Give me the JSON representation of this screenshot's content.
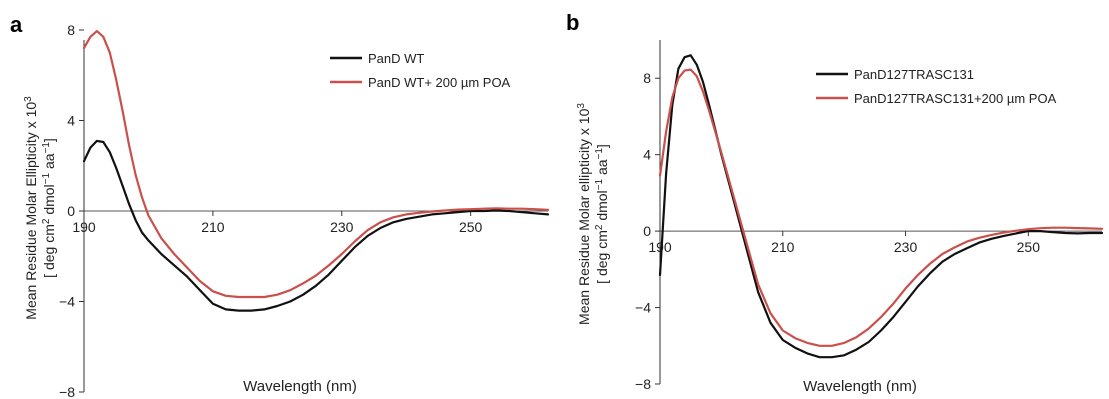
{
  "chart_data": [
    {
      "panel_label": "a",
      "type": "line",
      "xlabel": "Wavelength (nm)",
      "ylabel_line1": "Mean Residue Molar Ellipticity x 10",
      "ylabel_sup": "3",
      "ylabel_line2": "[ deg cm",
      "ylabel_line2_sup1": "2",
      "ylabel_line2_mid": " dmol",
      "ylabel_line2_sup2": "−1",
      "ylabel_line2_mid2": " aa",
      "ylabel_line2_sup3": "−1",
      "ylabel_line2_end": "]",
      "xlim": [
        190,
        262
      ],
      "ylim": [
        -8,
        8
      ],
      "xticks": [
        190,
        210,
        230,
        250
      ],
      "yticks": [
        8,
        4,
        0,
        -4,
        -8
      ],
      "xtick_labels": [
        "190",
        "210",
        "230",
        "250"
      ],
      "ytick_labels": [
        "8",
        "4",
        "0",
        "−4",
        "−8"
      ],
      "legend_position": "top-right",
      "series": [
        {
          "name": "PanD WT",
          "color": "#111111",
          "x": [
            190,
            191,
            192,
            193,
            194,
            195,
            196,
            197,
            198,
            199,
            200,
            202,
            204,
            206,
            208,
            210,
            212,
            214,
            216,
            218,
            220,
            222,
            224,
            226,
            228,
            230,
            232,
            234,
            236,
            238,
            240,
            242,
            244,
            246,
            248,
            250,
            252,
            254,
            256,
            258,
            260,
            262
          ],
          "y": [
            2.2,
            2.8,
            3.1,
            3.05,
            2.6,
            1.9,
            1.1,
            0.3,
            -0.4,
            -0.95,
            -1.3,
            -1.9,
            -2.4,
            -2.9,
            -3.5,
            -4.1,
            -4.35,
            -4.4,
            -4.4,
            -4.35,
            -4.2,
            -4.0,
            -3.7,
            -3.3,
            -2.8,
            -2.2,
            -1.6,
            -1.1,
            -0.75,
            -0.5,
            -0.35,
            -0.25,
            -0.15,
            -0.1,
            -0.05,
            0.0,
            0.0,
            0.02,
            0.0,
            -0.05,
            -0.1,
            -0.15
          ]
        },
        {
          "name": "PanD WT+ 200 µm POA",
          "color": "#c9504b",
          "x": [
            190,
            191,
            192,
            193,
            194,
            195,
            196,
            197,
            198,
            199,
            200,
            202,
            204,
            206,
            208,
            210,
            212,
            214,
            216,
            218,
            220,
            222,
            224,
            226,
            228,
            230,
            232,
            234,
            236,
            238,
            240,
            242,
            244,
            246,
            248,
            250,
            252,
            254,
            256,
            258,
            260,
            262
          ],
          "y": [
            7.2,
            7.7,
            7.95,
            7.7,
            7.0,
            5.8,
            4.4,
            2.9,
            1.6,
            0.6,
            -0.2,
            -1.2,
            -1.9,
            -2.5,
            -3.1,
            -3.55,
            -3.75,
            -3.8,
            -3.8,
            -3.8,
            -3.7,
            -3.5,
            -3.2,
            -2.85,
            -2.4,
            -1.9,
            -1.35,
            -0.85,
            -0.5,
            -0.28,
            -0.15,
            -0.08,
            -0.02,
            0.02,
            0.06,
            0.08,
            0.1,
            0.12,
            0.1,
            0.1,
            0.08,
            0.05
          ]
        }
      ]
    },
    {
      "panel_label": "b",
      "type": "line",
      "xlabel": "Wavelength (nm)",
      "ylabel_line1": "Mean Residue Molar ellipticity x 10",
      "ylabel_sup": "3",
      "ylabel_line2": "[ deg cm",
      "ylabel_line2_sup1": "2",
      "ylabel_line2_mid": " dmol",
      "ylabel_line2_sup2": "−1",
      "ylabel_line2_mid2": " aa",
      "ylabel_line2_sup3": "−1",
      "ylabel_line2_end": "]",
      "xlim": [
        190,
        262
      ],
      "ylim": [
        -8,
        10
      ],
      "xticks": [
        190,
        210,
        230,
        250
      ],
      "yticks": [
        8,
        4,
        0,
        -4,
        -8
      ],
      "xtick_labels": [
        "190",
        "210",
        "230",
        "250"
      ],
      "ytick_labels": [
        "8",
        "4",
        "0",
        "−4",
        "−8"
      ],
      "legend_position": "top-right",
      "series": [
        {
          "name": "PanD127TRASC131",
          "color": "#111111",
          "x": [
            190,
            191,
            192,
            193,
            194,
            195,
            196,
            197,
            198,
            199,
            200,
            202,
            204,
            206,
            208,
            210,
            212,
            214,
            216,
            218,
            220,
            222,
            224,
            226,
            228,
            230,
            232,
            234,
            236,
            238,
            240,
            242,
            244,
            246,
            248,
            250,
            252,
            254,
            256,
            258,
            260,
            262
          ],
          "y": [
            -2.3,
            3.0,
            6.6,
            8.5,
            9.1,
            9.2,
            8.7,
            7.8,
            6.6,
            5.3,
            4.0,
            1.6,
            -0.8,
            -3.2,
            -4.8,
            -5.7,
            -6.1,
            -6.4,
            -6.6,
            -6.6,
            -6.5,
            -6.2,
            -5.8,
            -5.2,
            -4.5,
            -3.7,
            -2.9,
            -2.2,
            -1.6,
            -1.2,
            -0.9,
            -0.6,
            -0.4,
            -0.25,
            -0.12,
            0.0,
            0.0,
            -0.05,
            -0.1,
            -0.12,
            -0.1,
            -0.1
          ]
        },
        {
          "name": "PanD127TRASC131+200 µm POA",
          "color": "#c9504b",
          "x": [
            190,
            191,
            192,
            193,
            194,
            195,
            196,
            197,
            198,
            199,
            200,
            202,
            204,
            206,
            208,
            210,
            212,
            214,
            216,
            218,
            220,
            222,
            224,
            226,
            228,
            230,
            232,
            234,
            236,
            238,
            240,
            242,
            244,
            246,
            248,
            250,
            252,
            254,
            256,
            258,
            260,
            262
          ],
          "y": [
            2.9,
            5.2,
            7.0,
            8.0,
            8.4,
            8.45,
            8.1,
            7.3,
            6.3,
            5.2,
            4.1,
            1.8,
            -0.5,
            -2.8,
            -4.3,
            -5.2,
            -5.6,
            -5.85,
            -6.0,
            -6.0,
            -5.85,
            -5.55,
            -5.1,
            -4.5,
            -3.8,
            -3.0,
            -2.3,
            -1.7,
            -1.2,
            -0.85,
            -0.55,
            -0.35,
            -0.2,
            -0.08,
            0.02,
            0.1,
            0.15,
            0.18,
            0.18,
            0.16,
            0.14,
            0.12
          ]
        }
      ]
    }
  ]
}
